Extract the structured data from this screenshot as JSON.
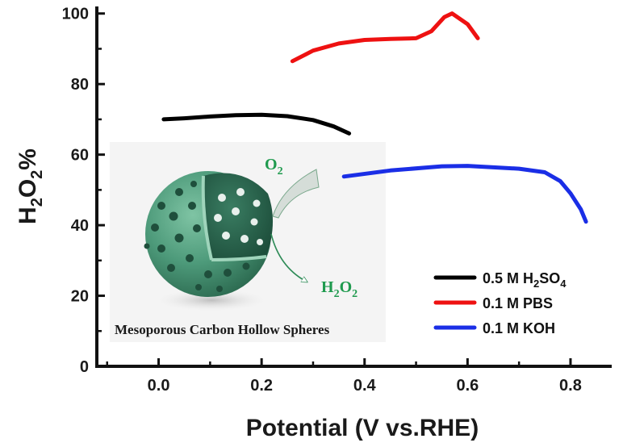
{
  "chart_data": {
    "type": "line",
    "xlabel": "Potential (V vs.RHE)",
    "ylabel": "H2O2%",
    "xlim": [
      -0.12,
      0.88
    ],
    "ylim": [
      0,
      102
    ],
    "xticks": [
      "0.0",
      "0.2",
      "0.4",
      "0.6",
      "0.8"
    ],
    "yticks": [
      "0",
      "20",
      "40",
      "60",
      "80",
      "100"
    ],
    "grid": false,
    "legend_position": "bottom-right",
    "series": [
      {
        "name": "0.5 M H2SO4",
        "color": "#000000",
        "points": [
          [
            0.01,
            70.0
          ],
          [
            0.05,
            70.3
          ],
          [
            0.1,
            70.8
          ],
          [
            0.15,
            71.2
          ],
          [
            0.2,
            71.3
          ],
          [
            0.25,
            70.9
          ],
          [
            0.3,
            69.8
          ],
          [
            0.34,
            68.0
          ],
          [
            0.37,
            66.0
          ]
        ]
      },
      {
        "name": "0.1 M PBS",
        "color": "#ee1111",
        "points": [
          [
            0.26,
            86.5
          ],
          [
            0.3,
            89.5
          ],
          [
            0.35,
            91.5
          ],
          [
            0.4,
            92.5
          ],
          [
            0.45,
            92.8
          ],
          [
            0.5,
            93.0
          ],
          [
            0.53,
            95.0
          ],
          [
            0.555,
            99.0
          ],
          [
            0.57,
            100.0
          ],
          [
            0.6,
            97.0
          ],
          [
            0.62,
            93.0
          ]
        ]
      },
      {
        "name": "0.1 M KOH",
        "color": "#1a2ee6",
        "points": [
          [
            0.36,
            53.8
          ],
          [
            0.45,
            55.5
          ],
          [
            0.55,
            56.7
          ],
          [
            0.6,
            56.8
          ],
          [
            0.65,
            56.4
          ],
          [
            0.7,
            56.0
          ],
          [
            0.75,
            55.0
          ],
          [
            0.78,
            52.5
          ],
          [
            0.8,
            49.0
          ],
          [
            0.82,
            44.5
          ],
          [
            0.83,
            41.0
          ]
        ]
      }
    ],
    "legend": [
      {
        "text": "0.5 M H",
        "sub1": "2",
        "mid": "SO",
        "sub2": "4"
      },
      {
        "text": "0.1 M PBS"
      },
      {
        "text": "0.1 M KOH"
      }
    ],
    "inset": {
      "caption": "Mesoporous Carbon Hollow Spheres",
      "o2_label": "O",
      "o2_sub": "2",
      "h2o2_label": "H",
      "h2o2_sub": "2",
      "h2o2_mid": "O",
      "h2o2_sub2": "2",
      "text_color": "#1f9a4e",
      "sphere_color": "#3f9070"
    }
  }
}
